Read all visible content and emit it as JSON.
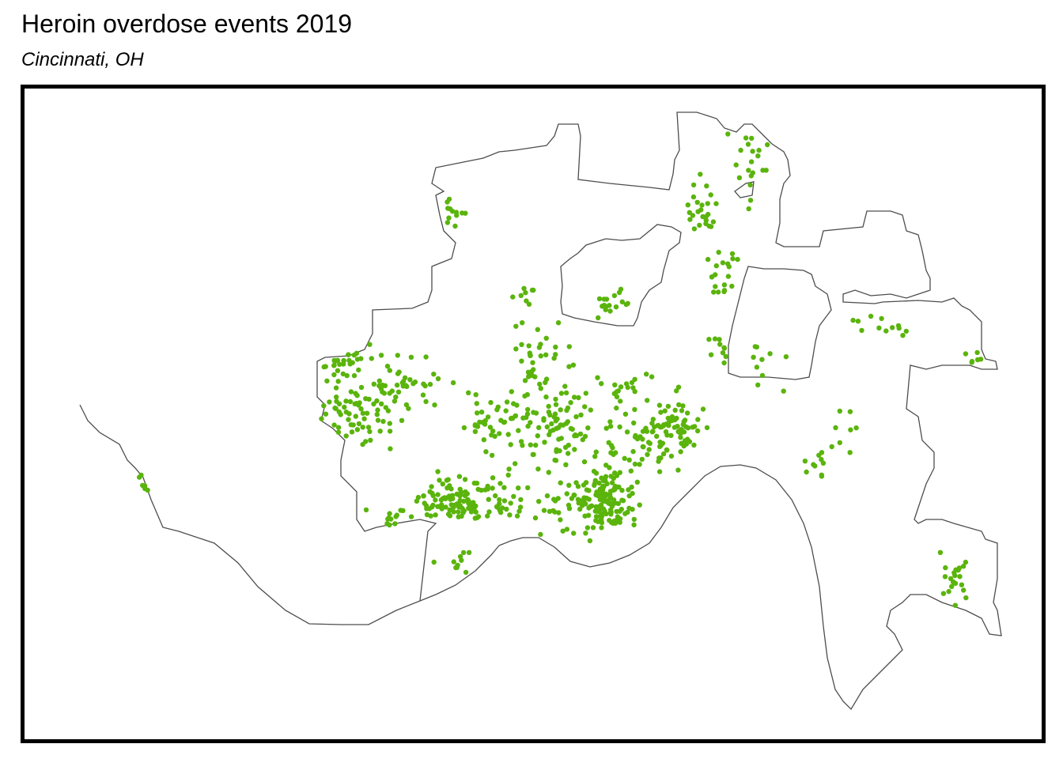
{
  "title": "Heroin overdose events 2019",
  "subtitle": "Cincinnati, OH",
  "map": {
    "boundary_color": "#4d4d4d",
    "point_color": "#5ab40c",
    "background_color": "#ffffff",
    "frame_color": "#000000",
    "layers": [
      "city-boundary",
      "overdose-points"
    ]
  }
}
